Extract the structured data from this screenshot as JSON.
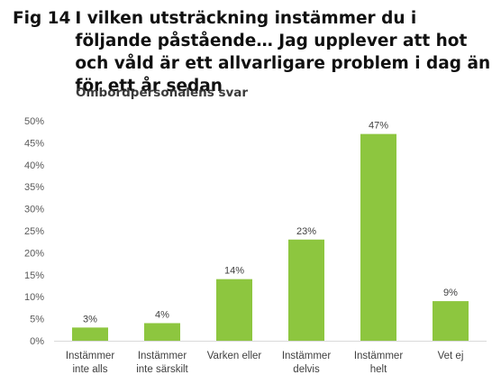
{
  "figure": {
    "number": "Fig 14",
    "title": "I vilken utsträckning instämmer du i följande påstående… Jag upplever att hot och våld är ett allvarligare problem i dag än för ett år sedan"
  },
  "chart_data": {
    "type": "bar",
    "subtitle": "Ombordpersonalens svar",
    "categories": [
      [
        "Instämmer",
        "inte alls"
      ],
      [
        "Instämmer",
        "inte särskilt"
      ],
      [
        "Varken eller"
      ],
      [
        "Instämmer",
        "delvis"
      ],
      [
        "Instämmer",
        "helt"
      ],
      [
        "Vet ej"
      ]
    ],
    "values": [
      3,
      4,
      14,
      23,
      47,
      9
    ],
    "data_labels": [
      "3%",
      "4%",
      "14%",
      "23%",
      "47%",
      "9%"
    ],
    "y_ticks": [
      "0%",
      "5%",
      "10%",
      "15%",
      "20%",
      "25%",
      "30%",
      "35%",
      "40%",
      "45%",
      "50%"
    ],
    "ylim": [
      0,
      50
    ],
    "grid": false,
    "bar_color": "#8dc63f",
    "axis_color": "#d9d9d9"
  }
}
